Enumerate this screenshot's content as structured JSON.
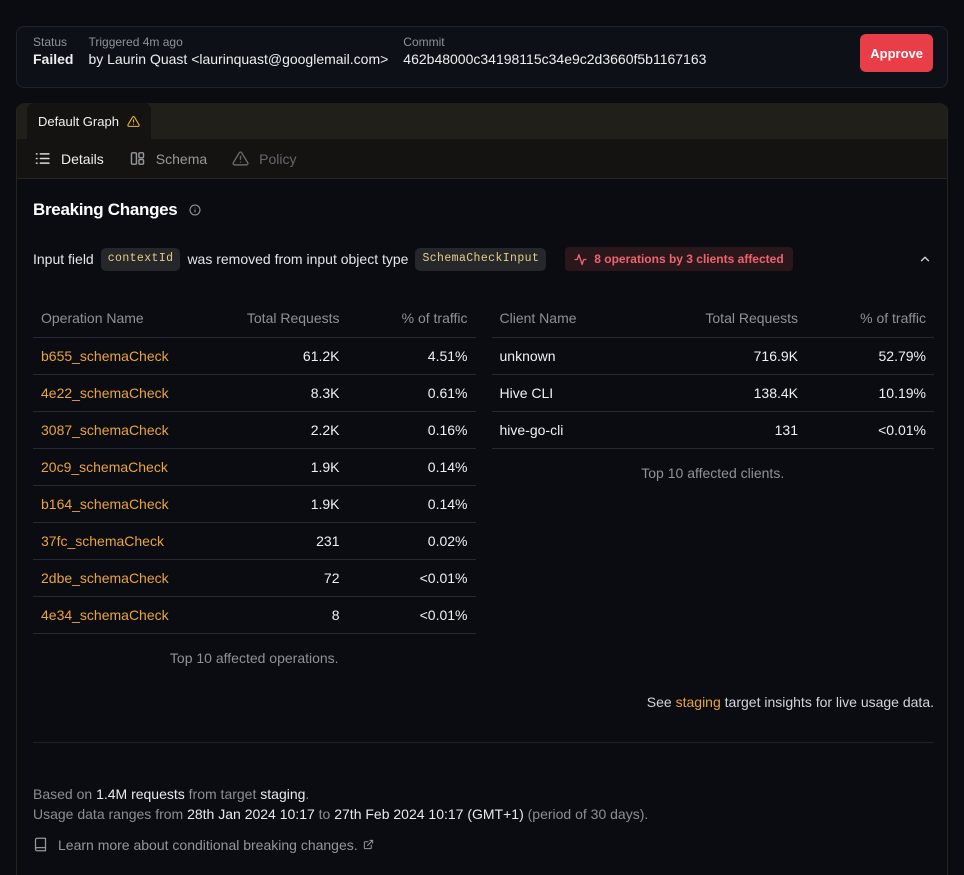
{
  "status_card": {
    "status_label": "Status",
    "status_value": "Failed",
    "triggered_label": "Triggered 4m ago",
    "triggered_value": "by Laurin Quast <laurinquast@googlemail.com>",
    "commit_label": "Commit",
    "commit_value": "462b48000c34198115c34e9c2d3660f5b1167163",
    "approve_label": "Approve"
  },
  "graph_tabs": {
    "active_tab": {
      "label": "Default Graph",
      "icon": "warning-triangle"
    }
  },
  "subnav": {
    "items": [
      {
        "label": "Details",
        "icon": "list",
        "state": "active"
      },
      {
        "label": "Schema",
        "icon": "schema-panels",
        "state": "muted"
      },
      {
        "label": "Policy",
        "icon": "warning-triangle",
        "state": "dim"
      }
    ]
  },
  "breaking_changes": {
    "title": "Breaking Changes",
    "change": {
      "prefix": "Input field",
      "field_code": "contextId",
      "middle": "was removed from input object type",
      "type_code": "SchemaCheckInput",
      "badge": "8 operations by 3 clients affected"
    },
    "operations_table": {
      "headers": [
        "Operation Name",
        "Total Requests",
        "% of traffic"
      ],
      "rows": [
        [
          "b655_schemaCheck",
          "61.2K",
          "4.51%"
        ],
        [
          "4e22_schemaCheck",
          "8.3K",
          "0.61%"
        ],
        [
          "3087_schemaCheck",
          "2.2K",
          "0.16%"
        ],
        [
          "20c9_schemaCheck",
          "1.9K",
          "0.14%"
        ],
        [
          "b164_schemaCheck",
          "1.9K",
          "0.14%"
        ],
        [
          "37fc_schemaCheck",
          "231",
          "0.02%"
        ],
        [
          "2dbe_schemaCheck",
          "72",
          "<0.01%"
        ],
        [
          "4e34_schemaCheck",
          "8",
          "<0.01%"
        ]
      ],
      "caption": "Top 10 affected operations."
    },
    "clients_table": {
      "headers": [
        "Client Name",
        "Total Requests",
        "% of traffic"
      ],
      "rows": [
        [
          "unknown",
          "716.9K",
          "52.79%"
        ],
        [
          "Hive CLI",
          "138.4K",
          "10.19%"
        ],
        [
          "hive-go-cli",
          "131",
          "<0.01%"
        ]
      ],
      "caption": "Top 10 affected clients."
    },
    "see_insights": {
      "prefix": "See",
      "link": "staging",
      "suffix": "target insights for live usage data."
    }
  },
  "footer": {
    "based_on": {
      "t1": "Based on",
      "h1": "1.4M requests",
      "t2": "from target",
      "h2": "staging",
      "t3": "."
    },
    "range": {
      "t1": "Usage data ranges from",
      "h1": "28th Jan 2024 10:17",
      "t2": "to",
      "h2": "27th Feb 2024 10:17 (GMT+1)",
      "t3": "(period of 30 days)."
    },
    "learn_more": "Learn more about conditional breaking changes."
  }
}
